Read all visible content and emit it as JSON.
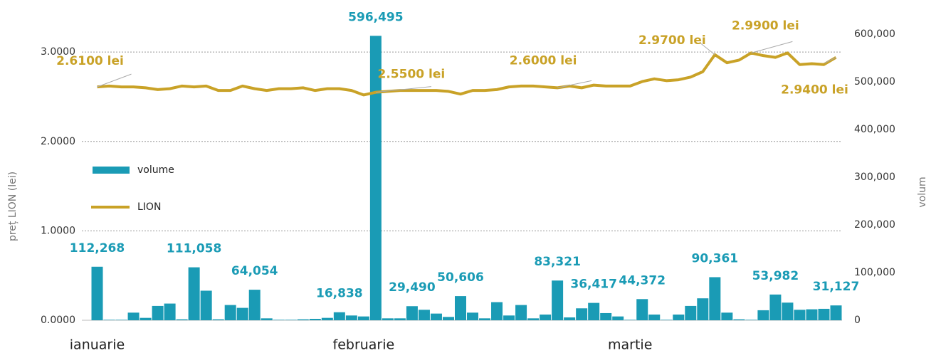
{
  "chart_data": {
    "type": "bar_line",
    "y_label": "preț LION (lei)",
    "y2_label": "volum",
    "categories": [
      "ianuarie",
      null,
      null,
      null,
      null,
      null,
      null,
      null,
      null,
      null,
      null,
      null,
      null,
      null,
      null,
      null,
      null,
      null,
      null,
      null,
      null,
      null,
      "februarie",
      null,
      null,
      null,
      null,
      null,
      null,
      null,
      null,
      null,
      null,
      null,
      null,
      null,
      null,
      null,
      null,
      null,
      null,
      null,
      null,
      null,
      "martie",
      null,
      null,
      null,
      null,
      null,
      null,
      null,
      null,
      null,
      null,
      null,
      null,
      null,
      null,
      null,
      null,
      null
    ],
    "series": [
      {
        "name": "volume",
        "type": "bar",
        "axis": "y2",
        "color": "#1a9bb5",
        "values": [
          112268,
          1000,
          1000,
          16000,
          5000,
          30000,
          35000,
          2000,
          111058,
          62000,
          2000,
          32000,
          26000,
          64054,
          4000,
          1000,
          1000,
          2000,
          3000,
          5000,
          16838,
          10000,
          8000,
          596495,
          4000,
          4000,
          29490,
          22000,
          14000,
          7000,
          50606,
          16000,
          4000,
          38000,
          10000,
          32000,
          4000,
          12000,
          83321,
          6000,
          25000,
          36417,
          15000,
          8000,
          1000,
          44372,
          12000,
          1000,
          12000,
          30000,
          46000,
          90361,
          16000,
          2000,
          1000,
          21000,
          53982,
          37000,
          22000,
          23000,
          24000,
          31127
        ],
        "value_labels": [
          "112,268",
          null,
          null,
          null,
          null,
          null,
          null,
          null,
          "111,058",
          null,
          null,
          null,
          null,
          "64,054",
          null,
          null,
          null,
          null,
          null,
          null,
          "16,838",
          null,
          null,
          "596,495",
          null,
          null,
          "29,490",
          null,
          null,
          null,
          "50,606",
          null,
          null,
          null,
          null,
          null,
          null,
          null,
          "83,321",
          null,
          null,
          "36,417",
          null,
          null,
          null,
          "44,372",
          null,
          null,
          null,
          null,
          null,
          "90,361",
          null,
          null,
          null,
          null,
          "53,982",
          null,
          null,
          null,
          null,
          "31,127"
        ]
      },
      {
        "name": "LION",
        "type": "line",
        "color": "#c9a227",
        "values": [
          2.61,
          2.62,
          2.61,
          2.61,
          2.6,
          2.58,
          2.59,
          2.62,
          2.61,
          2.62,
          2.57,
          2.57,
          2.62,
          2.59,
          2.57,
          2.59,
          2.59,
          2.6,
          2.57,
          2.59,
          2.59,
          2.57,
          2.52,
          2.55,
          2.56,
          2.57,
          2.57,
          2.57,
          2.57,
          2.56,
          2.53,
          2.57,
          2.57,
          2.58,
          2.61,
          2.62,
          2.62,
          2.61,
          2.6,
          2.62,
          2.6,
          2.63,
          2.62,
          2.62,
          2.62,
          2.67,
          2.7,
          2.68,
          2.69,
          2.72,
          2.78,
          2.97,
          2.88,
          2.91,
          2.99,
          2.96,
          2.94,
          2.99,
          2.86,
          2.87,
          2.86,
          2.94
        ],
        "value_labels": [
          "2.6100 lei",
          null,
          null,
          null,
          null,
          null,
          null,
          null,
          null,
          null,
          null,
          null,
          null,
          null,
          null,
          null,
          null,
          null,
          null,
          null,
          null,
          null,
          null,
          "2.5500 lei",
          null,
          null,
          null,
          null,
          null,
          null,
          null,
          null,
          null,
          null,
          null,
          null,
          null,
          null,
          "2.6000 lei",
          null,
          null,
          null,
          null,
          null,
          null,
          null,
          null,
          null,
          null,
          null,
          null,
          "2.9700 lei",
          null,
          null,
          "2.9900 lei",
          null,
          null,
          null,
          null,
          null,
          null,
          "2.9400 lei"
        ]
      }
    ],
    "ylim": [
      0,
      3.2
    ],
    "yticks": [
      {
        "value": 0,
        "label": "0.0000"
      },
      {
        "value": 1,
        "label": "1.0000"
      },
      {
        "value": 2,
        "label": "2.0000"
      },
      {
        "value": 3,
        "label": "3.0000"
      }
    ],
    "y2lim": [
      0,
      600000
    ],
    "y2ticks": [
      0,
      {
        "value": 100000,
        "label": "100,000"
      },
      {
        "value": 200000,
        "label": "200,000"
      },
      {
        "value": 300000,
        "label": "300,000"
      },
      {
        "value": 400000,
        "label": "400,000"
      },
      {
        "value": 500000,
        "label": "500,000"
      },
      {
        "value": 600000,
        "label": "600,000"
      }
    ],
    "grid": true,
    "legend": "left"
  }
}
